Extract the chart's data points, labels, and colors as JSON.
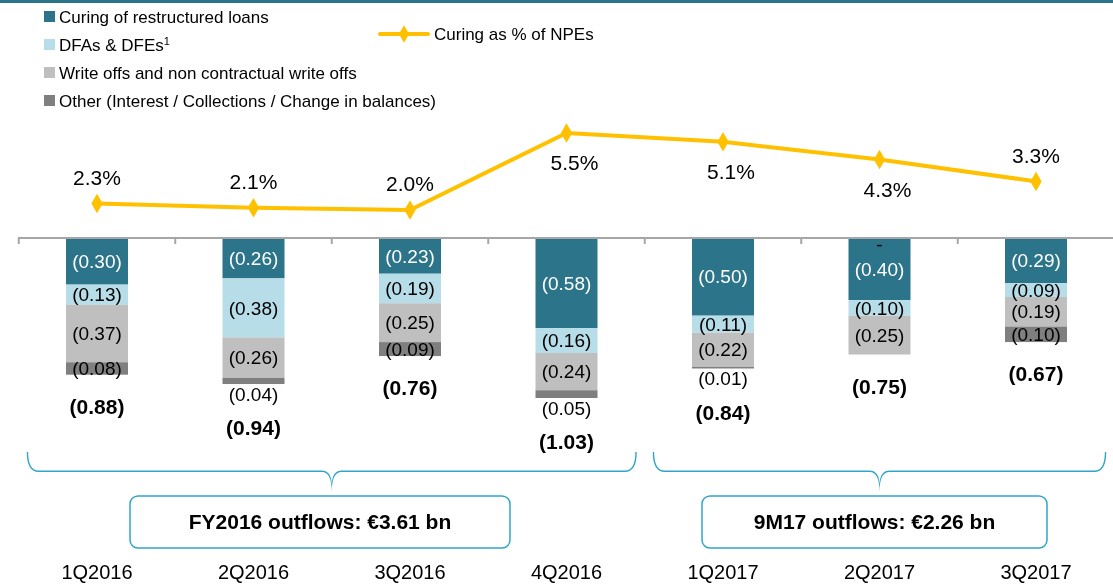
{
  "chart_data": [
    {
      "type": "bar",
      "stacked": true,
      "categories": [
        "1Q2016",
        "2Q2016",
        "3Q2016",
        "4Q2016",
        "1Q2017",
        "2Q2017",
        "3Q2017"
      ],
      "series": [
        {
          "name": "Curing of restructured loans",
          "color": "#2b7489",
          "values": [
            -0.3,
            -0.26,
            -0.23,
            -0.58,
            -0.5,
            -0.4,
            -0.29
          ],
          "value_labels": [
            "(0.30)",
            "(0.26)",
            "(0.23)",
            "(0.58)",
            "(0.50)",
            "(0.40)",
            "(0.29)"
          ]
        },
        {
          "name": "DFAs & DFEs$^{1}$",
          "color": "#b7dde8",
          "values": [
            -0.13,
            -0.38,
            -0.19,
            -0.16,
            -0.11,
            -0.1,
            -0.09
          ],
          "value_labels": [
            "(0.13)",
            "(0.38)",
            "(0.19)",
            "(0.16)",
            "(0.11)",
            "(0.10)",
            "(0.09)"
          ]
        },
        {
          "name": "Write offs and non contractual write offs",
          "color": "#bfbfbf",
          "values": [
            -0.37,
            -0.26,
            -0.25,
            -0.24,
            -0.22,
            -0.25,
            -0.19
          ],
          "value_labels": [
            "(0.37)",
            "(0.26)",
            "(0.25)",
            "(0.24)",
            "(0.22)",
            "(0.25)",
            "(0.19)"
          ]
        },
        {
          "name": "Other  (Interest / Collections / Change in balances)",
          "color": "#7f7f7f",
          "values": [
            -0.08,
            -0.04,
            -0.09,
            -0.05,
            -0.01,
            null,
            -0.1
          ],
          "value_labels": [
            "(0.08)",
            "(0.04)",
            "(0.09)",
            "(0.05)",
            "(0.01)",
            "-",
            "(0.10)"
          ]
        }
      ],
      "totals": [
        "(0.88)",
        "(0.94)",
        "(0.76)",
        "(1.03)",
        "(0.84)",
        "(0.75)",
        "(0.67)"
      ],
      "annotations": [
        "FY2016 outflows: €3.61 bn",
        "9M17 outflows: €2.26 bn"
      ],
      "legend": "top left"
    },
    {
      "type": "line",
      "categories": [
        null,
        null,
        null,
        null,
        null,
        null,
        null
      ],
      "marker": "diamond",
      "legend": "top",
      "series": [
        {
          "name": "Curing as % of NPEs",
          "color": "#ffc000",
          "values": [
            2.3,
            2.1,
            2.0,
            5.5,
            5.1,
            4.3,
            3.3
          ],
          "value_labels": [
            "2.3%",
            "2.1%",
            "2.0%",
            "5.5%",
            "5.1%",
            "4.3%",
            "3.3%"
          ]
        }
      ]
    }
  ]
}
